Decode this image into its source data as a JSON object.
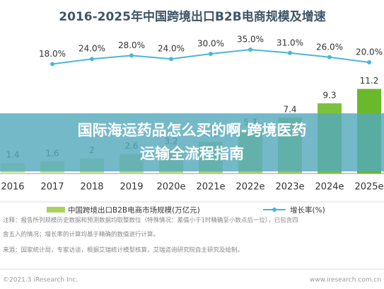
{
  "chart_data": {
    "type": "bar",
    "title": "2016-2025年中国跨境出口B2B电商规模及增速",
    "categories": [
      "2016",
      "2017",
      "2018",
      "2019",
      "2020e",
      "2021e",
      "2022e",
      "2023e",
      "2024e",
      "2025e"
    ],
    "series": [
      {
        "name": "中国跨境出口B2B电商市场规模(万亿元)",
        "color": "#a9d25c",
        "colors": [
          "#cfe6a4",
          "#c9e39a",
          "#c3e08f",
          "#bddc85",
          "#b6d97b",
          "#aed471",
          "#a6cf67",
          "#9cca5c",
          "#7cc13c",
          "#6ab82c"
        ],
        "values": [
          1.4,
          1.6,
          2.0,
          2.6,
          3.2,
          4.2,
          5.7,
          7.4,
          9.3,
          11.2
        ]
      },
      {
        "name": "增长率(%)",
        "type": "line",
        "axis": "y2",
        "color": "#4cb6d6",
        "values": [
          null,
          18.0,
          24.0,
          28.0,
          24.0,
          30.0,
          35.0,
          31.0,
          26.0,
          20.0
        ],
        "value_labels": [
          null,
          "18.0%",
          "24.0%",
          "28.0%",
          "24.0%",
          "30.0%",
          "35.0%",
          "31.0%",
          "26.0%",
          "20.0%"
        ]
      }
    ],
    "ylim": [
      0,
      12
    ],
    "y2lim": [
      0,
      40
    ],
    "notes": [
      "注释：报告所列规模历史数据和预测数据均取整数位（特殊情况：差值小于1时精确至小数点后一位），已包含四",
      "舍五入的情况；增长率的计算均基于精确的数值进行计算。",
      "来源：国家统计局，专家访谈，根据艾瑞统计模型核算，艾瑞咨询研究院自主研究及绘制。"
    ],
    "copyright": "©2021.3 iResearch Inc.",
    "website": "www.iresearch.com.cn"
  },
  "banner": {
    "lines": [
      "国际海运药品怎么买的啊-跨境医药",
      "运输全流程指南"
    ]
  }
}
